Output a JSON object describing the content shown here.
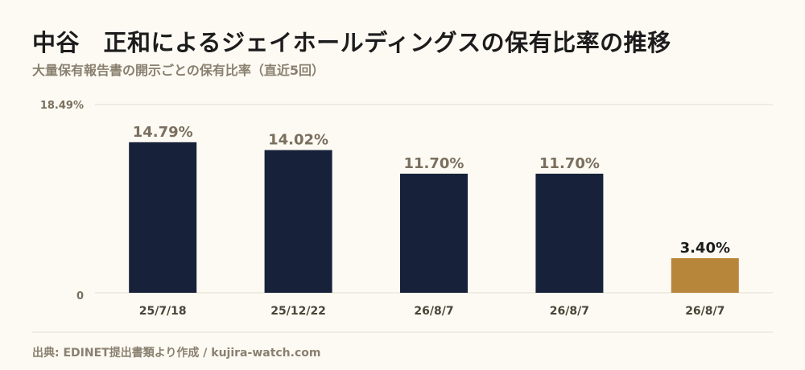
{
  "header": {
    "title": "中谷　正和によるジェイホールディングスの保有比率の推移",
    "subtitle": "大量保有報告書の開示ごとの保有比率（直近5回）"
  },
  "footer": {
    "source": "出典: EDINET提出書類より作成 / kujira-watch.com"
  },
  "chart_data": {
    "type": "bar",
    "categories": [
      "25/7/18",
      "25/12/22",
      "26/8/7",
      "26/8/7",
      "26/8/7"
    ],
    "values": [
      14.79,
      14.02,
      11.7,
      11.7,
      3.4
    ],
    "value_labels": [
      "14.79%",
      "14.02%",
      "11.70%",
      "11.70%",
      "3.40%"
    ],
    "ylim": [
      0,
      18.49
    ],
    "y_tick_labels": [
      "0",
      "18.49%"
    ],
    "colors": {
      "default": "#17213a",
      "highlight": "#b8863b",
      "value_label_default": "#7a6f5e",
      "value_label_highlight": "#1c1c1c",
      "axis_text": "#7a6f5e",
      "grid": "#e4ded0"
    },
    "highlight_index": 4
  }
}
